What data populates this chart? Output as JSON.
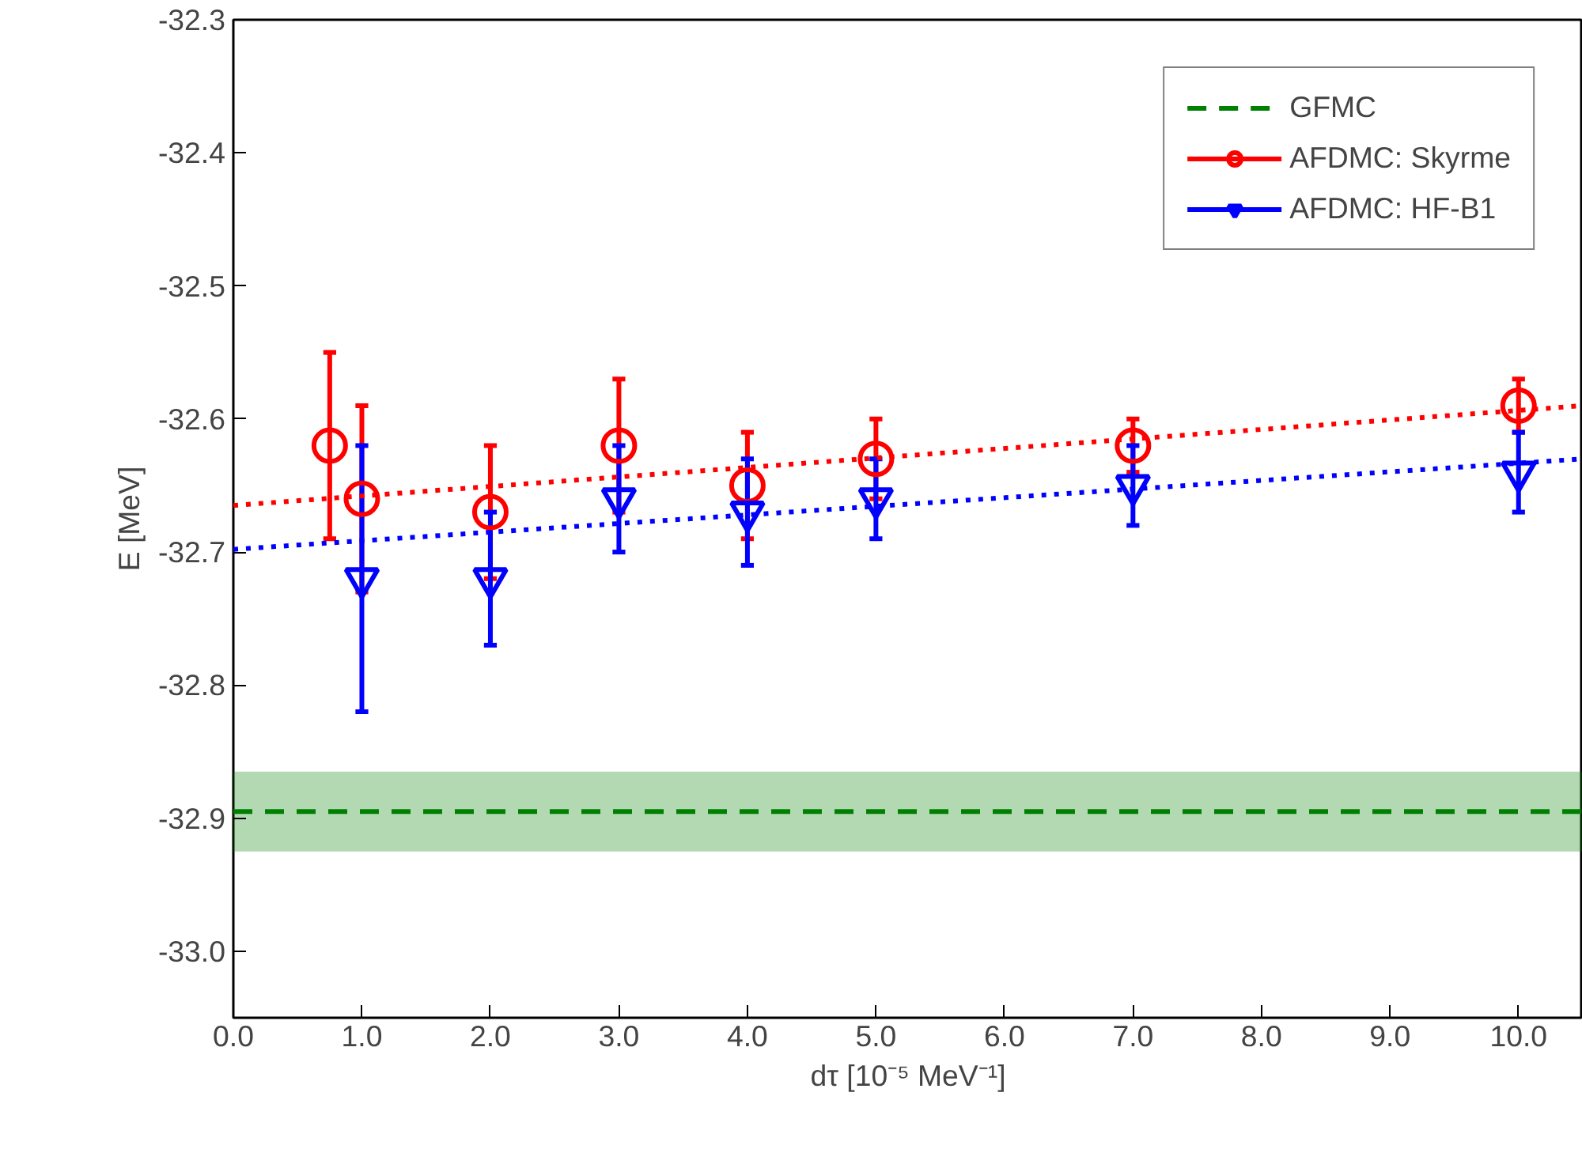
{
  "chart_data": {
    "type": "scatter",
    "xlabel": "dτ [10⁻⁵ MeV⁻¹]",
    "ylabel": "E [MeV]",
    "xlim": [
      0,
      10.5
    ],
    "ylim": [
      -33.05,
      -32.3
    ],
    "xticks": [
      {
        "value": 0,
        "label": "0.0"
      },
      {
        "value": 1,
        "label": "1.0"
      },
      {
        "value": 2,
        "label": "2.0"
      },
      {
        "value": 3,
        "label": "3.0"
      },
      {
        "value": 4,
        "label": "4.0"
      },
      {
        "value": 5,
        "label": "5.0"
      },
      {
        "value": 6,
        "label": "6.0"
      },
      {
        "value": 7,
        "label": "7.0"
      },
      {
        "value": 8,
        "label": "8.0"
      },
      {
        "value": 9,
        "label": "9.0"
      },
      {
        "value": 10,
        "label": "10.0"
      }
    ],
    "yticks": [
      {
        "value": -33.0,
        "label": "-33.0"
      },
      -32.9,
      -32.8,
      -32.7,
      -32.6,
      -32.5,
      -32.4,
      -32.3
    ],
    "grid": false,
    "legend": "top right",
    "series": [
      {
        "name": "GFMC",
        "type": "line",
        "color": "#008000",
        "line_style": "dashed",
        "marker": "none",
        "x": [
          0,
          10.5
        ],
        "values": [
          -32.895,
          -32.895
        ],
        "lower": [
          -32.925,
          -32.925
        ],
        "upper": [
          -32.865,
          -32.865
        ]
      },
      {
        "name": "AFDMC: Skyrme",
        "color": "#ff0000",
        "marker": "circle",
        "x": [
          0.75,
          1,
          2,
          3,
          4,
          5,
          7,
          10
        ],
        "values": [
          -32.62,
          -32.66,
          -32.67,
          -32.62,
          -32.65,
          -32.63,
          -32.62,
          -32.59
        ],
        "errors": [
          0.07,
          0.07,
          0.05,
          0.05,
          0.04,
          0.03,
          0.02,
          0.02
        ]
      },
      {
        "name": "AFDMC: HF-B1",
        "color": "#0000ff",
        "marker": "triangle",
        "x": [
          1,
          2,
          3,
          4,
          5,
          7,
          10
        ],
        "values": [
          -32.72,
          -32.72,
          -32.66,
          -32.67,
          -32.66,
          -32.65,
          -32.64
        ],
        "errors": [
          0.1,
          0.05,
          0.04,
          0.04,
          0.03,
          0.03,
          0.03
        ]
      },
      {
        "type": "line",
        "color": "#ff0000",
        "line_style": "dotted",
        "marker": "none",
        "x": [
          0,
          10.5
        ],
        "values": [
          -32.665,
          -32.59
        ]
      },
      {
        "type": "line",
        "color": "#0000ff",
        "line_style": "dotted",
        "marker": "none",
        "x": [
          0,
          10.5
        ],
        "values": [
          -32.698,
          -32.63
        ]
      }
    ]
  }
}
